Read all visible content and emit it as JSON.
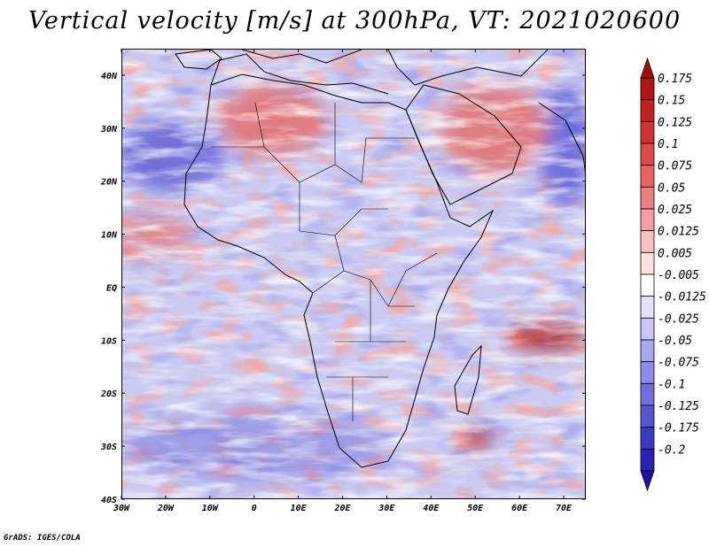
{
  "title": "Vertical velocity [m/s] at 300hPa, VT: 2021020600",
  "credit": "GrADS: IGES/COLA",
  "map": {
    "region": "Africa",
    "lon_range": [
      -30,
      75
    ],
    "lat_range": [
      -40,
      45
    ],
    "lat_ticks": [
      {
        "value": 40,
        "label": "40N"
      },
      {
        "value": 30,
        "label": "30N"
      },
      {
        "value": 20,
        "label": "20N"
      },
      {
        "value": 10,
        "label": "10N"
      },
      {
        "value": 0,
        "label": "EQ"
      },
      {
        "value": -10,
        "label": "10S"
      },
      {
        "value": -20,
        "label": "20S"
      },
      {
        "value": -30,
        "label": "30S"
      },
      {
        "value": -40,
        "label": "40S"
      }
    ],
    "lon_ticks": [
      {
        "value": -30,
        "label": "30W"
      },
      {
        "value": -20,
        "label": "20W"
      },
      {
        "value": -10,
        "label": "10W"
      },
      {
        "value": 0,
        "label": "0"
      },
      {
        "value": 10,
        "label": "10E"
      },
      {
        "value": 20,
        "label": "20E"
      },
      {
        "value": 30,
        "label": "30E"
      },
      {
        "value": 40,
        "label": "40E"
      },
      {
        "value": 50,
        "label": "50E"
      },
      {
        "value": 60,
        "label": "60E"
      },
      {
        "value": 70,
        "label": "70E"
      }
    ]
  },
  "colorbar": {
    "levels": [
      {
        "label": "0.175",
        "color": "#b01414"
      },
      {
        "label": "0.15",
        "color": "#c02222"
      },
      {
        "label": "0.125",
        "color": "#d03434"
      },
      {
        "label": "0.1",
        "color": "#dc4a4a"
      },
      {
        "label": "0.075",
        "color": "#e46464"
      },
      {
        "label": "0.05",
        "color": "#ec8080"
      },
      {
        "label": "0.025",
        "color": "#f29e9e"
      },
      {
        "label": "0.0125",
        "color": "#f8c0c0"
      },
      {
        "label": "0.005",
        "color": "#fde2e2"
      },
      {
        "label": "-0.005",
        "color": "#ffffff"
      },
      {
        "label": "-0.0125",
        "color": "#e2e2fd"
      },
      {
        "label": "-0.025",
        "color": "#c6c6f6"
      },
      {
        "label": "-0.05",
        "color": "#a8a8ee"
      },
      {
        "label": "-0.075",
        "color": "#8c8ce6"
      },
      {
        "label": "-0.1",
        "color": "#7070dc"
      },
      {
        "label": "-0.125",
        "color": "#5656d0"
      },
      {
        "label": "-0.175",
        "color": "#3c3cc2"
      },
      {
        "label": "-0.2",
        "color": "#2a22b0"
      }
    ],
    "top_arrow_color": "#a01010",
    "bottom_arrow_color": "#2010a0"
  },
  "colors": {
    "field_base": "#c9c9f1",
    "field_deep_blue": "#6262d8",
    "field_red": "#e27070",
    "field_dark_red": "#b82a2a",
    "coast": "#000000"
  }
}
